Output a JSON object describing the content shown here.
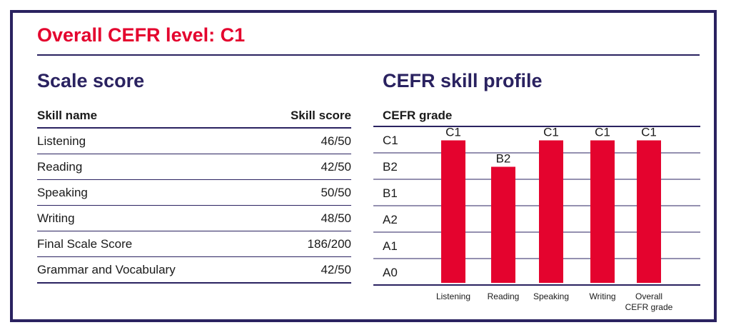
{
  "header": {
    "title": "Overall CEFR level: C1"
  },
  "scale_score": {
    "title": "Scale score",
    "columns": [
      "Skill name",
      "Skill score"
    ],
    "rows": [
      {
        "skill": "Listening",
        "score": "46/50"
      },
      {
        "skill": "Reading",
        "score": "42/50"
      },
      {
        "skill": "Speaking",
        "score": "50/50"
      },
      {
        "skill": "Writing",
        "score": "48/50"
      },
      {
        "skill": "Final Scale Score",
        "score": "186/200"
      },
      {
        "skill": "Grammar and Vocabulary",
        "score": "42/50"
      }
    ]
  },
  "profile": {
    "title": "CEFR skill profile",
    "subtitle": "CEFR grade"
  },
  "colors": {
    "bar": "#e4032e",
    "accent_title": "#e4032e",
    "navy": "#2a2260"
  },
  "chart_data": {
    "type": "bar",
    "ylabel": "CEFR grade",
    "levels": [
      "C1",
      "B2",
      "B1",
      "A2",
      "A1",
      "A0"
    ],
    "categories": [
      "Listening",
      "Reading",
      "Speaking",
      "Writing",
      "Overall\nCEFR grade"
    ],
    "values": [
      "C1",
      "B2",
      "C1",
      "C1",
      "C1"
    ],
    "data_labels": [
      "C1",
      "B2",
      "C1",
      "C1",
      "C1"
    ],
    "grid": true
  }
}
